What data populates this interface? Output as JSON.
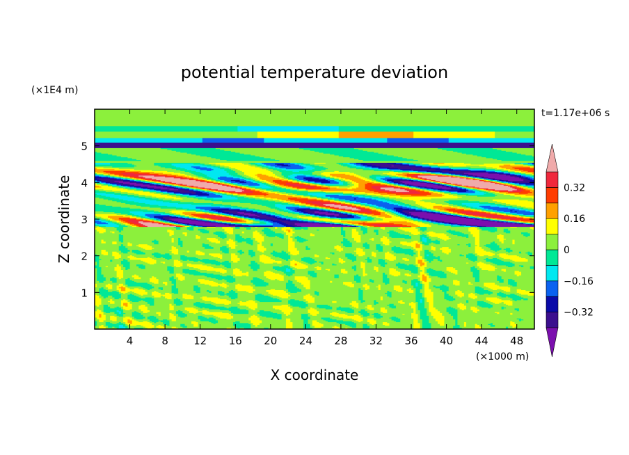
{
  "chart_data": {
    "type": "heatmap",
    "title": "potential temperature deviation",
    "time_label": "t=1.17e+06 s",
    "xlabel": "X coordinate",
    "ylabel": "Z coordinate",
    "x_unit": "(×1000 m)",
    "y_unit": "(×1E4 m)",
    "xlim": [
      0,
      50
    ],
    "ylim": [
      0,
      6
    ],
    "x_ticks": [
      "4",
      "8",
      "12",
      "16",
      "20",
      "24",
      "28",
      "32",
      "36",
      "40",
      "44",
      "48"
    ],
    "y_ticks": [
      "1",
      "2",
      "3",
      "4",
      "5"
    ],
    "colorbar": {
      "levels": [
        -0.4,
        -0.32,
        -0.24,
        -0.16,
        -0.08,
        0,
        0.08,
        0.16,
        0.24,
        0.32,
        0.4
      ],
      "labels": [
        "0.32",
        "0.16",
        "0",
        "−0.16",
        "−0.32"
      ],
      "label_values": [
        0.32,
        0.16,
        0,
        -0.16,
        -0.32
      ],
      "colors": [
        "#7b0fae",
        "#3c0f8e",
        "#0a0aa8",
        "#0a62f0",
        "#00e8f0",
        "#00e896",
        "#8cf03c",
        "#ffff00",
        "#ffa000",
        "#ff3c00",
        "#f0283c",
        "#f0aaaa"
      ],
      "extend": "both"
    },
    "layers": [
      {
        "z_from": 0,
        "z_to": 2.8,
        "pattern": "speckle",
        "values": [
          0.0,
          0.05
        ]
      },
      {
        "z_from": 2.8,
        "z_to": 4.55,
        "pattern": "turbulent",
        "values": [
          -0.4,
          0.4
        ]
      },
      {
        "z_from": 4.55,
        "z_to": 6.0,
        "pattern": "stratified",
        "values": [
          -0.3,
          0.2
        ]
      }
    ]
  }
}
